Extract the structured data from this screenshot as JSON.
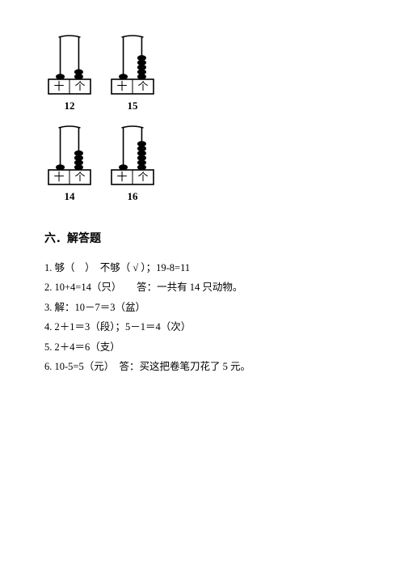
{
  "abaci": [
    {
      "tens": 1,
      "ones": 2,
      "label": "12",
      "boxTens": "十",
      "boxOnes": "个"
    },
    {
      "tens": 1,
      "ones": 5,
      "label": "15",
      "boxTens": "十",
      "boxOnes": "个"
    },
    {
      "tens": 1,
      "ones": 4,
      "label": "14",
      "boxTens": "十",
      "boxOnes": "个"
    },
    {
      "tens": 1,
      "ones": 6,
      "label": "16",
      "boxTens": "十",
      "boxOnes": "个"
    }
  ],
  "sectionTitle": "六．解答题",
  "answers": {
    "a1": "1. 够（　）　不够（ √ ）；19-8=11",
    "a2": "2. 10+4=14（只）　　答：一共有 14 只动物。",
    "a3": "3. 解：10－7＝3（盆）",
    "a4": "4. 2＋1＝3（段）；5－1＝4（次）",
    "a5": "5. 2＋4＝6（支）",
    "a6": "6. 10-5=5（元）　答：买这把卷笔刀花了 5 元。"
  },
  "style": {
    "stroke": "#000000",
    "beadFill": "#000000",
    "boxFill": "#ffffff",
    "beadRy": 3.2,
    "beadRx": 5.2,
    "rodWidth": 1.6,
    "boxStroke": 1.6
  }
}
